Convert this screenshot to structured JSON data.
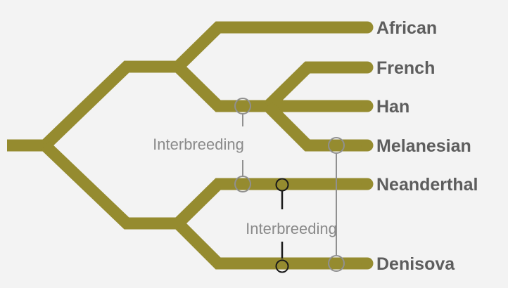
{
  "colors": {
    "background": "#f3f3f3",
    "branch": "#958b2f",
    "label": "#5d5d5d",
    "interbreeding_label": "#8a8a8a",
    "connector_light": "#909090",
    "connector_dark": "#1a1a1a"
  },
  "taxa": {
    "african": "African",
    "french": "French",
    "han": "Han",
    "melanesian": "Melanesian",
    "neanderthal": "Neanderthal",
    "denisova": "Denisova"
  },
  "interbreeding": {
    "modern_neanderthal": "Interbreeding",
    "neanderthal_denisova": "Interbreeding"
  }
}
